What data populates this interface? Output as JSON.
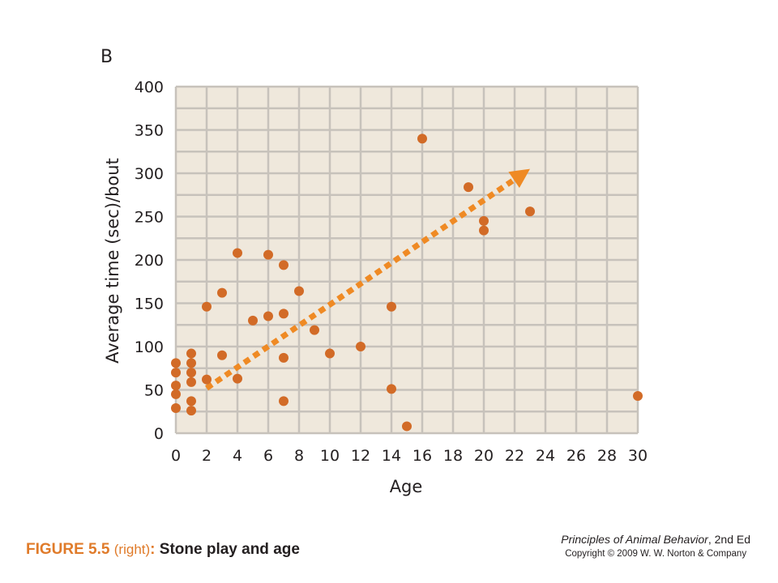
{
  "panel_label": "B",
  "caption": {
    "figure_number": "FIGURE 5.5",
    "side": "(right)",
    "colon": ":",
    "title": "Stone play and age"
  },
  "credit": {
    "book_title": "Principles of Animal Behavior",
    "edition": ", 2nd Ed",
    "copyright": "Copyright © 2009 W. W. Norton & Company"
  },
  "colors": {
    "plot_background": "#efe8dc",
    "grid": "#c7c2bb",
    "points": "#d26b27",
    "trend_arrow": "#ef8a24"
  },
  "chart_data": {
    "type": "scatter",
    "title": "",
    "xlabel": "Age",
    "ylabel": "Average time (sec)/bout",
    "xlim": [
      0,
      30
    ],
    "ylim": [
      0,
      400
    ],
    "xticks": [
      0,
      2,
      4,
      6,
      8,
      10,
      12,
      14,
      16,
      18,
      20,
      22,
      24,
      26,
      28,
      30
    ],
    "yticks": [
      0,
      50,
      100,
      150,
      200,
      250,
      300,
      350,
      400
    ],
    "grid": true,
    "points": [
      {
        "x": 0,
        "y": 81
      },
      {
        "x": 0,
        "y": 70
      },
      {
        "x": 0,
        "y": 55
      },
      {
        "x": 0,
        "y": 45
      },
      {
        "x": 0,
        "y": 29
      },
      {
        "x": 1,
        "y": 92
      },
      {
        "x": 1,
        "y": 81
      },
      {
        "x": 1,
        "y": 70
      },
      {
        "x": 1,
        "y": 59
      },
      {
        "x": 1,
        "y": 37
      },
      {
        "x": 1,
        "y": 26
      },
      {
        "x": 2,
        "y": 146
      },
      {
        "x": 2,
        "y": 62
      },
      {
        "x": 3,
        "y": 162
      },
      {
        "x": 3,
        "y": 90
      },
      {
        "x": 4,
        "y": 208
      },
      {
        "x": 4,
        "y": 63
      },
      {
        "x": 5,
        "y": 130
      },
      {
        "x": 6,
        "y": 206
      },
      {
        "x": 6,
        "y": 135
      },
      {
        "x": 7,
        "y": 194
      },
      {
        "x": 7,
        "y": 138
      },
      {
        "x": 7,
        "y": 87
      },
      {
        "x": 7,
        "y": 37
      },
      {
        "x": 8,
        "y": 164
      },
      {
        "x": 9,
        "y": 119
      },
      {
        "x": 10,
        "y": 92
      },
      {
        "x": 12,
        "y": 100
      },
      {
        "x": 14,
        "y": 146
      },
      {
        "x": 14,
        "y": 51
      },
      {
        "x": 15,
        "y": 8
      },
      {
        "x": 16,
        "y": 340
      },
      {
        "x": 19,
        "y": 284
      },
      {
        "x": 20,
        "y": 245
      },
      {
        "x": 20,
        "y": 234
      },
      {
        "x": 23,
        "y": 256
      },
      {
        "x": 30,
        "y": 43
      }
    ],
    "trend_arrow": {
      "from": {
        "x": 2,
        "y": 52
      },
      "to": {
        "x": 23,
        "y": 305
      },
      "style": "dashed"
    }
  }
}
